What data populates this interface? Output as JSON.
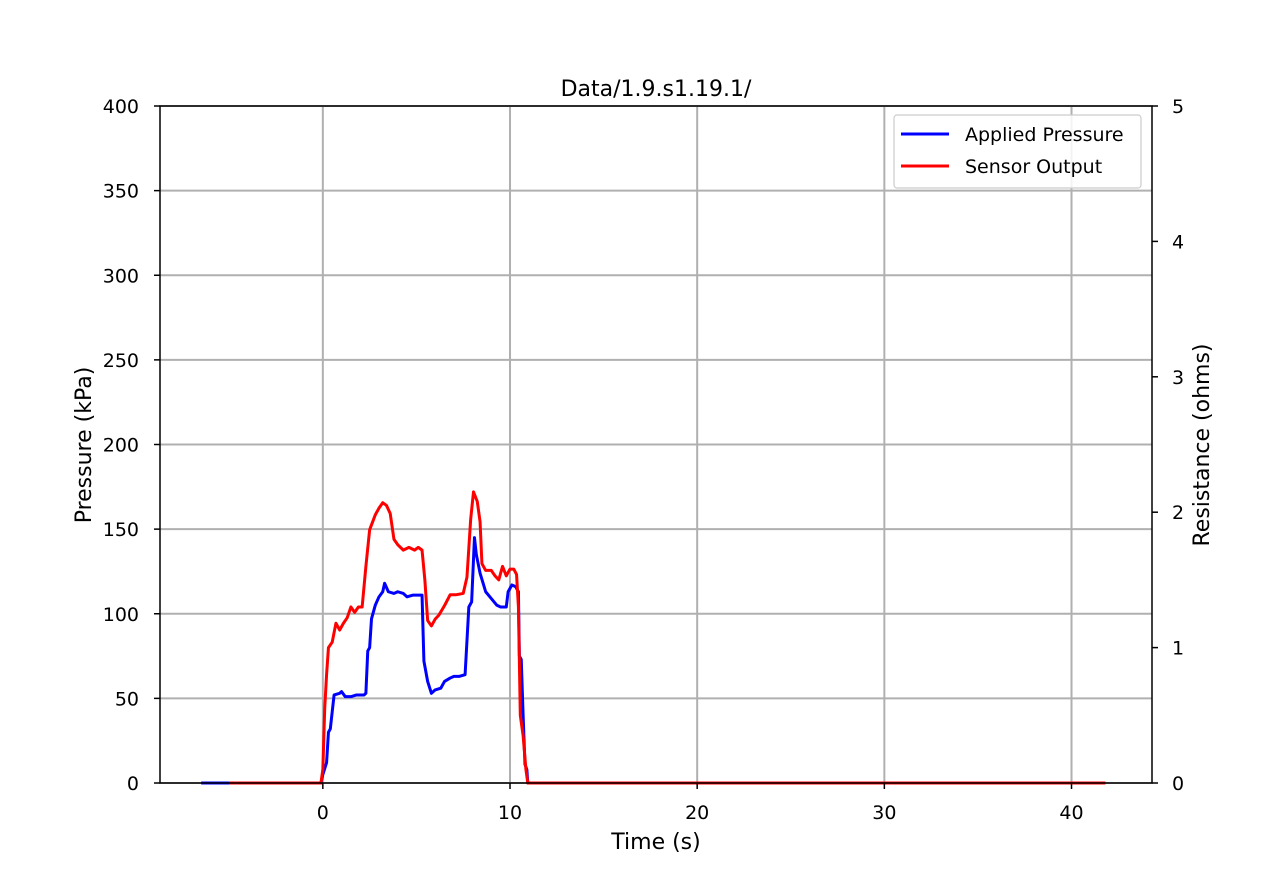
{
  "chart_data": {
    "type": "line",
    "title": "Data/1.9.s1.19.1/",
    "xlabel": "Time (s)",
    "ylabel": "Pressure (kPa)",
    "y2label": "Resistance (ohms)",
    "xlim": [
      -8.7,
      44.3
    ],
    "ylim": [
      0,
      400
    ],
    "y2lim": [
      0,
      5
    ],
    "xticks": [
      0,
      10,
      20,
      30,
      40
    ],
    "yticks": [
      0,
      50,
      100,
      150,
      200,
      250,
      300,
      350,
      400
    ],
    "y2ticks": [
      0,
      1,
      2,
      3,
      4,
      5
    ],
    "grid": true,
    "legend_position": "upper right",
    "series": [
      {
        "name": "Applied Pressure",
        "axis": "left",
        "color": "#0000ff",
        "points": [
          [
            -6.5,
            0
          ],
          [
            -0.1,
            0
          ],
          [
            0.0,
            5
          ],
          [
            0.2,
            12
          ],
          [
            0.3,
            30
          ],
          [
            0.4,
            32
          ],
          [
            0.6,
            52
          ],
          [
            0.9,
            53
          ],
          [
            1.0,
            54
          ],
          [
            1.2,
            51
          ],
          [
            1.5,
            51
          ],
          [
            1.8,
            52
          ],
          [
            2.2,
            52
          ],
          [
            2.3,
            53
          ],
          [
            2.4,
            78
          ],
          [
            2.5,
            80
          ],
          [
            2.6,
            97
          ],
          [
            2.8,
            105
          ],
          [
            3.0,
            110
          ],
          [
            3.2,
            113
          ],
          [
            3.3,
            118
          ],
          [
            3.5,
            113
          ],
          [
            3.8,
            112
          ],
          [
            4.0,
            113
          ],
          [
            4.3,
            112
          ],
          [
            4.5,
            110
          ],
          [
            4.8,
            111
          ],
          [
            5.0,
            111
          ],
          [
            5.3,
            111
          ],
          [
            5.4,
            72
          ],
          [
            5.6,
            60
          ],
          [
            5.8,
            53
          ],
          [
            6.0,
            55
          ],
          [
            6.3,
            56
          ],
          [
            6.5,
            60
          ],
          [
            6.8,
            62
          ],
          [
            7.0,
            63
          ],
          [
            7.3,
            63
          ],
          [
            7.6,
            64
          ],
          [
            7.8,
            104
          ],
          [
            7.95,
            107
          ],
          [
            8.1,
            145
          ],
          [
            8.2,
            135
          ],
          [
            8.4,
            124
          ],
          [
            8.7,
            113
          ],
          [
            9.0,
            109
          ],
          [
            9.3,
            105
          ],
          [
            9.5,
            104
          ],
          [
            9.8,
            104
          ],
          [
            9.9,
            113
          ],
          [
            10.1,
            117
          ],
          [
            10.3,
            116
          ],
          [
            10.45,
            113
          ],
          [
            10.5,
            75
          ],
          [
            10.6,
            73
          ],
          [
            10.7,
            40
          ],
          [
            10.8,
            11
          ],
          [
            10.9,
            8
          ],
          [
            10.95,
            0
          ],
          [
            41.8,
            0
          ]
        ]
      },
      {
        "name": "Sensor Output",
        "axis": "right",
        "color": "#ff0000",
        "points": [
          [
            -5.0,
            0
          ],
          [
            -0.1,
            0
          ],
          [
            0.0,
            0.1
          ],
          [
            0.1,
            0.55
          ],
          [
            0.2,
            0.8
          ],
          [
            0.3,
            1.0
          ],
          [
            0.5,
            1.04
          ],
          [
            0.7,
            1.18
          ],
          [
            0.9,
            1.13
          ],
          [
            1.1,
            1.18
          ],
          [
            1.3,
            1.22
          ],
          [
            1.5,
            1.3
          ],
          [
            1.7,
            1.26
          ],
          [
            1.9,
            1.3
          ],
          [
            2.1,
            1.3
          ],
          [
            2.3,
            1.6
          ],
          [
            2.5,
            1.87
          ],
          [
            2.8,
            1.98
          ],
          [
            3.0,
            2.03
          ],
          [
            3.2,
            2.07
          ],
          [
            3.4,
            2.05
          ],
          [
            3.6,
            1.99
          ],
          [
            3.8,
            1.8
          ],
          [
            4.0,
            1.76
          ],
          [
            4.3,
            1.72
          ],
          [
            4.6,
            1.74
          ],
          [
            4.9,
            1.72
          ],
          [
            5.1,
            1.74
          ],
          [
            5.3,
            1.72
          ],
          [
            5.45,
            1.5
          ],
          [
            5.6,
            1.2
          ],
          [
            5.8,
            1.16
          ],
          [
            6.0,
            1.21
          ],
          [
            6.2,
            1.24
          ],
          [
            6.5,
            1.31
          ],
          [
            6.8,
            1.39
          ],
          [
            7.1,
            1.39
          ],
          [
            7.5,
            1.4
          ],
          [
            7.7,
            1.52
          ],
          [
            7.9,
            1.95
          ],
          [
            8.05,
            2.15
          ],
          [
            8.25,
            2.08
          ],
          [
            8.4,
            1.93
          ],
          [
            8.5,
            1.62
          ],
          [
            8.7,
            1.57
          ],
          [
            9.0,
            1.57
          ],
          [
            9.2,
            1.53
          ],
          [
            9.4,
            1.5
          ],
          [
            9.6,
            1.6
          ],
          [
            9.8,
            1.53
          ],
          [
            10.0,
            1.58
          ],
          [
            10.2,
            1.58
          ],
          [
            10.35,
            1.54
          ],
          [
            10.45,
            1.3
          ],
          [
            10.55,
            0.5
          ],
          [
            10.7,
            0.35
          ],
          [
            10.85,
            0.1
          ],
          [
            10.95,
            0
          ],
          [
            41.8,
            0
          ]
        ]
      }
    ]
  }
}
